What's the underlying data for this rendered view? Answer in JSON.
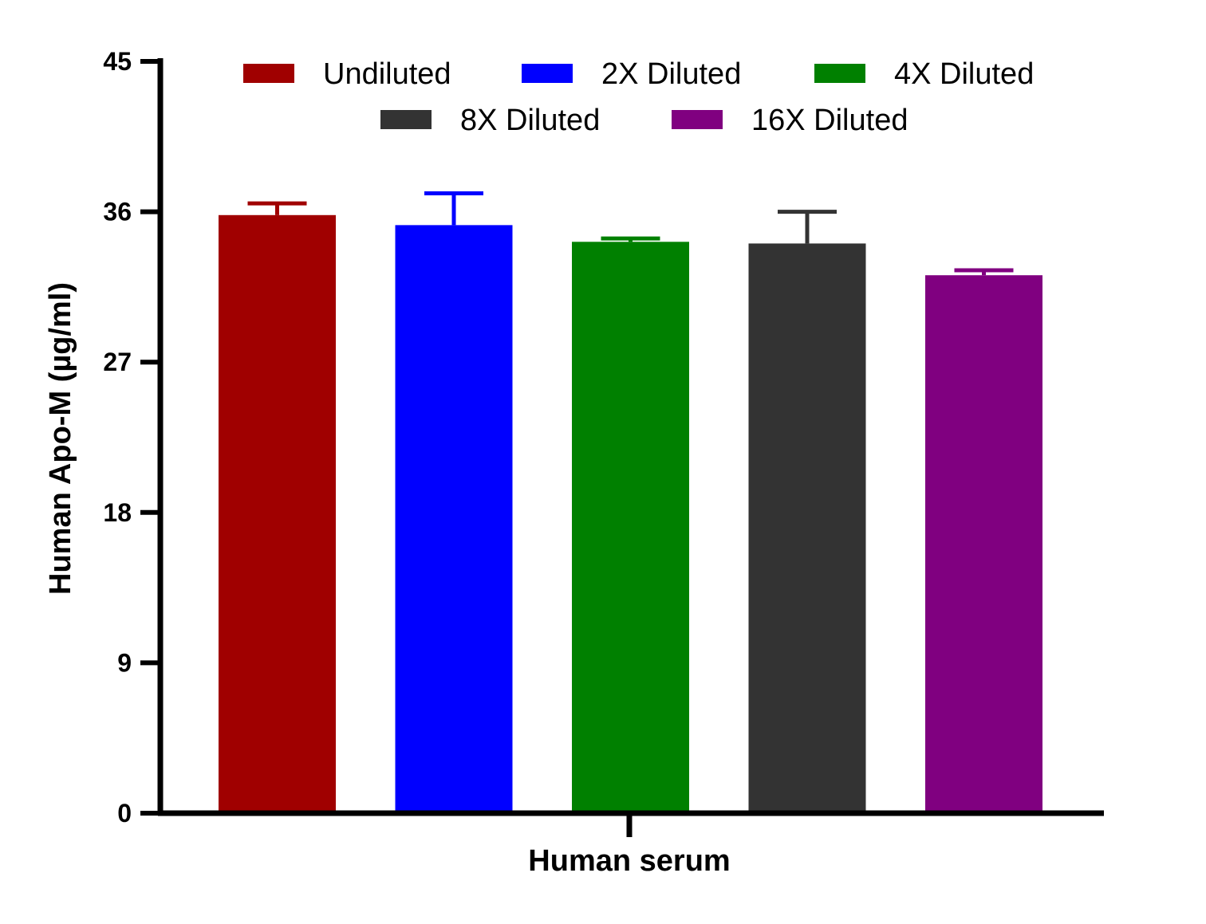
{
  "chart_data": {
    "type": "bar",
    "title": "",
    "xlabel": "Human serum",
    "ylabel": "Human Apo-M (µg/ml)",
    "ylim": [
      0,
      45
    ],
    "yticks": [
      "0",
      "9",
      "18",
      "27",
      "36",
      "45"
    ],
    "categories": [
      "Human serum"
    ],
    "legend_position": "top",
    "series": [
      {
        "name": "Undiluted",
        "value": 35.8,
        "error": 0.7,
        "color": "#a00000"
      },
      {
        "name": "2X Diluted",
        "value": 35.2,
        "error": 1.9,
        "color": "#0000ff"
      },
      {
        "name": "4X Diluted",
        "value": 34.2,
        "error": 0.2,
        "color": "#008000"
      },
      {
        "name": "8X Diluted",
        "value": 34.1,
        "error": 1.9,
        "color": "#333333"
      },
      {
        "name": "16X Diluted",
        "value": 32.2,
        "error": 0.3,
        "color": "#800080"
      }
    ]
  }
}
